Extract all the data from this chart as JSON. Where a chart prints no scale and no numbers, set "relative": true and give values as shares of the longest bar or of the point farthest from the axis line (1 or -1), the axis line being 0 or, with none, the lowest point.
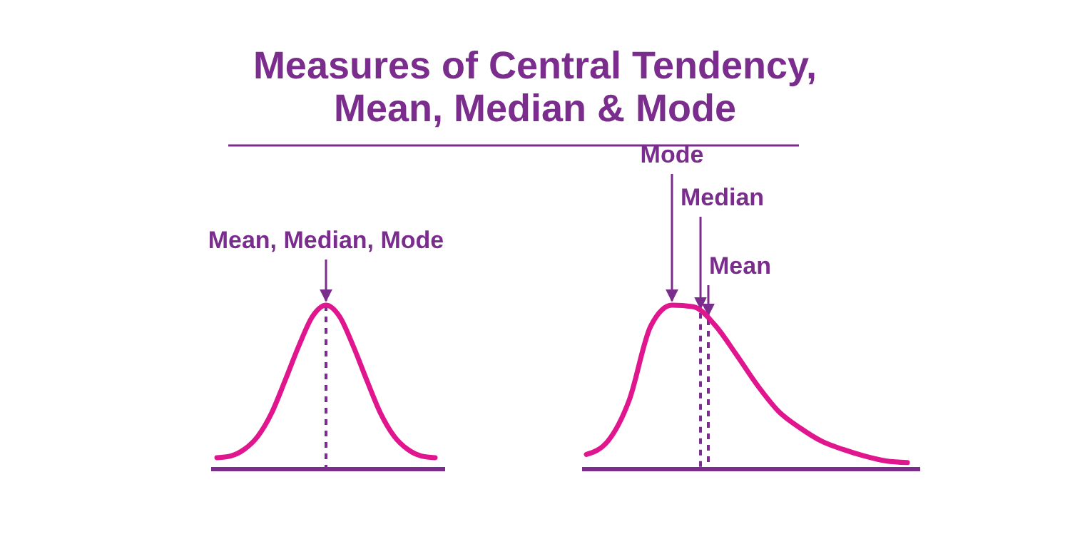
{
  "chart_data": [
    {
      "type": "line",
      "title": "Measures of Central Tendency,\nMean, Median & Mode",
      "relative": true,
      "color": "#e0168f",
      "categories": [
        null,
        null,
        null,
        null,
        null,
        null,
        null,
        null,
        null,
        null,
        null,
        null,
        null,
        null,
        null,
        null,
        null
      ],
      "values": [
        0.07,
        0.08,
        0.12,
        0.2,
        0.34,
        0.54,
        0.75,
        0.93,
        1,
        0.93,
        0.75,
        0.54,
        0.34,
        0.2,
        0.12,
        0.08,
        0.07
      ],
      "annotations": [
        "Mean, Median, Mode"
      ]
    },
    {
      "type": "line",
      "relative": true,
      "color": "#e0168f",
      "categories": [
        null,
        null,
        null,
        null,
        null,
        null,
        null,
        null,
        null,
        null,
        null,
        null,
        null,
        null,
        null,
        null
      ],
      "values": [
        0.09,
        0.17,
        0.42,
        0.87,
        1,
        0.99,
        0.88,
        0.7,
        0.51,
        0.35,
        0.25,
        0.17,
        0.12,
        0.08,
        0.05,
        0.04
      ],
      "annotations": [
        "Mode",
        "Median",
        "Mean"
      ]
    }
  ]
}
